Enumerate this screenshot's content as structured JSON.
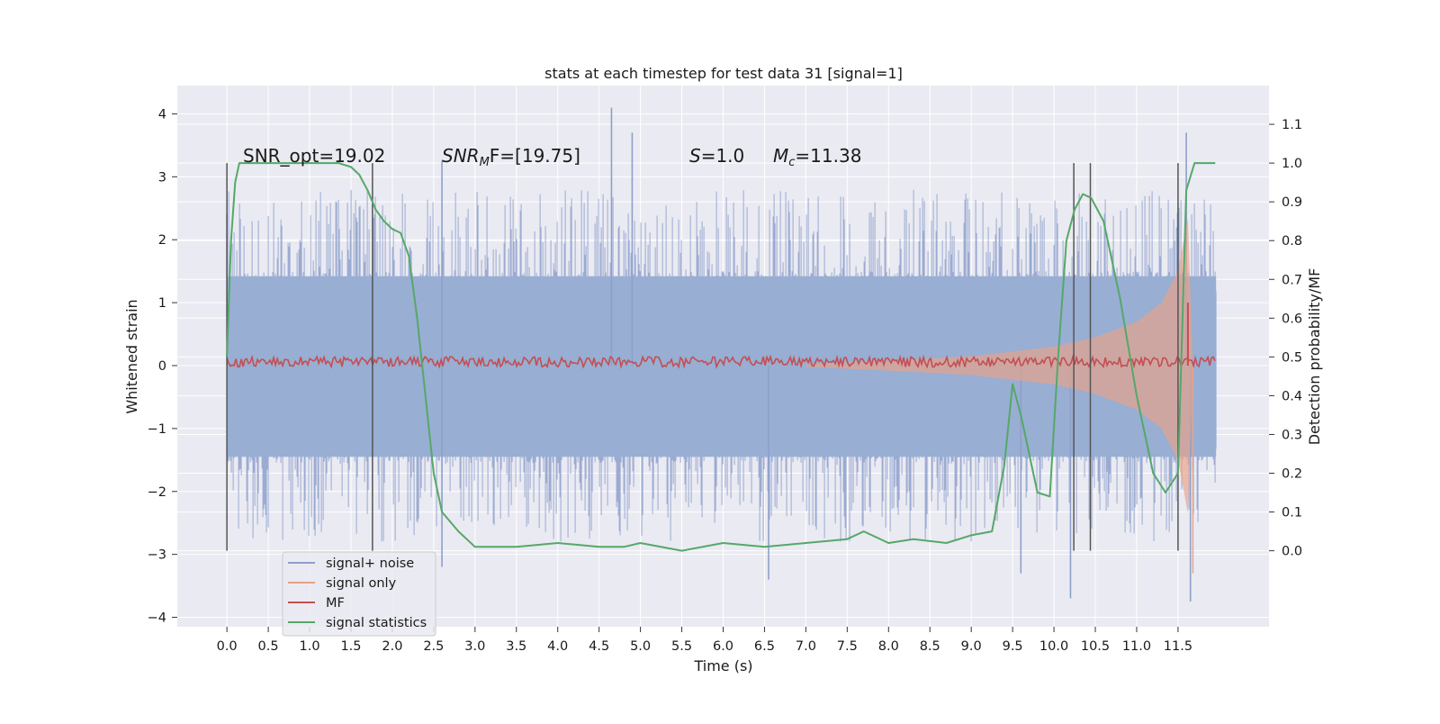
{
  "chart_data": {
    "type": "line",
    "title": "stats at each timestep for test data 31 [signal=1]",
    "xlabel": "Time (s)",
    "ylabel": "Whitened strain",
    "y2label": "Detection probability/MF",
    "xlim": [
      -0.6,
      12.6
    ],
    "ylim": [
      -4.15,
      4.45
    ],
    "y2lim": [
      -0.196,
      1.2
    ],
    "x_ticks": [
      "0.0",
      "0.5",
      "1.0",
      "1.5",
      "2.0",
      "2.5",
      "3.0",
      "3.5",
      "4.0",
      "4.5",
      "5.0",
      "5.5",
      "6.0",
      "6.5",
      "7.0",
      "7.5",
      "8.0",
      "8.5",
      "9.0",
      "9.5",
      "10.0",
      "10.5",
      "11.0",
      "11.5"
    ],
    "y_ticks": [
      "4",
      "3",
      "2",
      "1",
      "0",
      "−1",
      "−2",
      "−3",
      "−4"
    ],
    "y2_ticks": [
      "1.1",
      "1.0",
      "0.9",
      "0.8",
      "0.7",
      "0.6",
      "0.5",
      "0.4",
      "0.3",
      "0.2",
      "0.1",
      "0.0"
    ],
    "grid": true,
    "legend_position": "lower-left",
    "legend": [
      {
        "label": "signal+ noise",
        "color": "#8da0cb"
      },
      {
        "label": "signal only",
        "color": "#e9a187"
      },
      {
        "label": "MF",
        "color": "#c44e52"
      },
      {
        "label": "signal statistics",
        "color": "#55a868"
      }
    ],
    "annotations": {
      "snr_opt": "SNR_opt=19.02",
      "snr_mf_sym": "SNR",
      "snr_mf_sub": "M",
      "snr_mf_rest": "F=[19.75]",
      "s_sym": "S",
      "s_val": "=1.0",
      "mc_sym": "M",
      "mc_sub": "c",
      "mc_val": "=11.38"
    },
    "vertical_markers_x": [
      0.0,
      1.76,
      10.24,
      10.44,
      11.5
    ],
    "noise": {
      "x_range": [
        0.0,
        11.96
      ],
      "core_range": [
        -1.45,
        1.42
      ],
      "typical_peak": [
        2.2,
        -2.2
      ],
      "peaks": [
        {
          "x": 4.65,
          "y": 4.1
        },
        {
          "x": 4.9,
          "y": 3.7
        },
        {
          "x": 11.6,
          "y": 3.7
        },
        {
          "x": 2.6,
          "y": 3.25
        },
        {
          "x": 11.65,
          "y": -3.75
        },
        {
          "x": 10.2,
          "y": -3.7
        },
        {
          "x": 6.55,
          "y": -3.4
        },
        {
          "x": 9.6,
          "y": -3.3
        },
        {
          "x": 2.6,
          "y": -3.2
        },
        {
          "x": 0.0,
          "y": 2.4
        }
      ]
    },
    "signal_only": {
      "x_range": [
        7.0,
        11.75
      ],
      "envelope": [
        [
          7.0,
          0.02
        ],
        [
          8.0,
          0.08
        ],
        [
          9.0,
          0.15
        ],
        [
          10.0,
          0.3
        ],
        [
          10.5,
          0.45
        ],
        [
          11.0,
          0.7
        ],
        [
          11.3,
          1.0
        ],
        [
          11.5,
          1.5
        ],
        [
          11.62,
          2.35
        ],
        [
          11.68,
          -3.3
        ]
      ]
    },
    "mf": {
      "x_range": [
        0.0,
        11.96
      ],
      "band": [
        -0.02,
        0.14
      ],
      "spike": {
        "x": 11.62,
        "y": 1.0
      }
    },
    "signal_statistics": {
      "x": [
        0.0,
        0.05,
        0.1,
        0.15,
        0.2,
        0.3,
        0.5,
        1.0,
        1.35,
        1.5,
        1.6,
        1.7,
        1.8,
        1.9,
        2.0,
        2.1,
        2.2,
        2.3,
        2.4,
        2.5,
        2.6,
        2.8,
        3.0,
        3.5,
        4.0,
        4.5,
        4.8,
        5.0,
        5.5,
        6.0,
        6.5,
        7.0,
        7.5,
        7.7,
        8.0,
        8.3,
        8.7,
        9.0,
        9.25,
        9.4,
        9.5,
        9.6,
        9.8,
        9.95,
        10.05,
        10.15,
        10.25,
        10.35,
        10.45,
        10.6,
        10.8,
        11.0,
        11.2,
        11.35,
        11.5,
        11.6,
        11.7,
        11.8,
        11.95
      ],
      "y": [
        0.5,
        0.8,
        0.95,
        1.0,
        1.0,
        1.0,
        1.0,
        1.0,
        1.0,
        0.99,
        0.97,
        0.93,
        0.88,
        0.85,
        0.83,
        0.82,
        0.76,
        0.6,
        0.4,
        0.2,
        0.1,
        0.05,
        0.01,
        0.01,
        0.02,
        0.01,
        0.01,
        0.02,
        0.0,
        0.02,
        0.01,
        0.02,
        0.03,
        0.05,
        0.02,
        0.03,
        0.02,
        0.04,
        0.05,
        0.22,
        0.43,
        0.35,
        0.15,
        0.14,
        0.5,
        0.8,
        0.88,
        0.92,
        0.91,
        0.85,
        0.65,
        0.4,
        0.2,
        0.15,
        0.2,
        0.93,
        1.0,
        1.0,
        1.0
      ]
    }
  }
}
